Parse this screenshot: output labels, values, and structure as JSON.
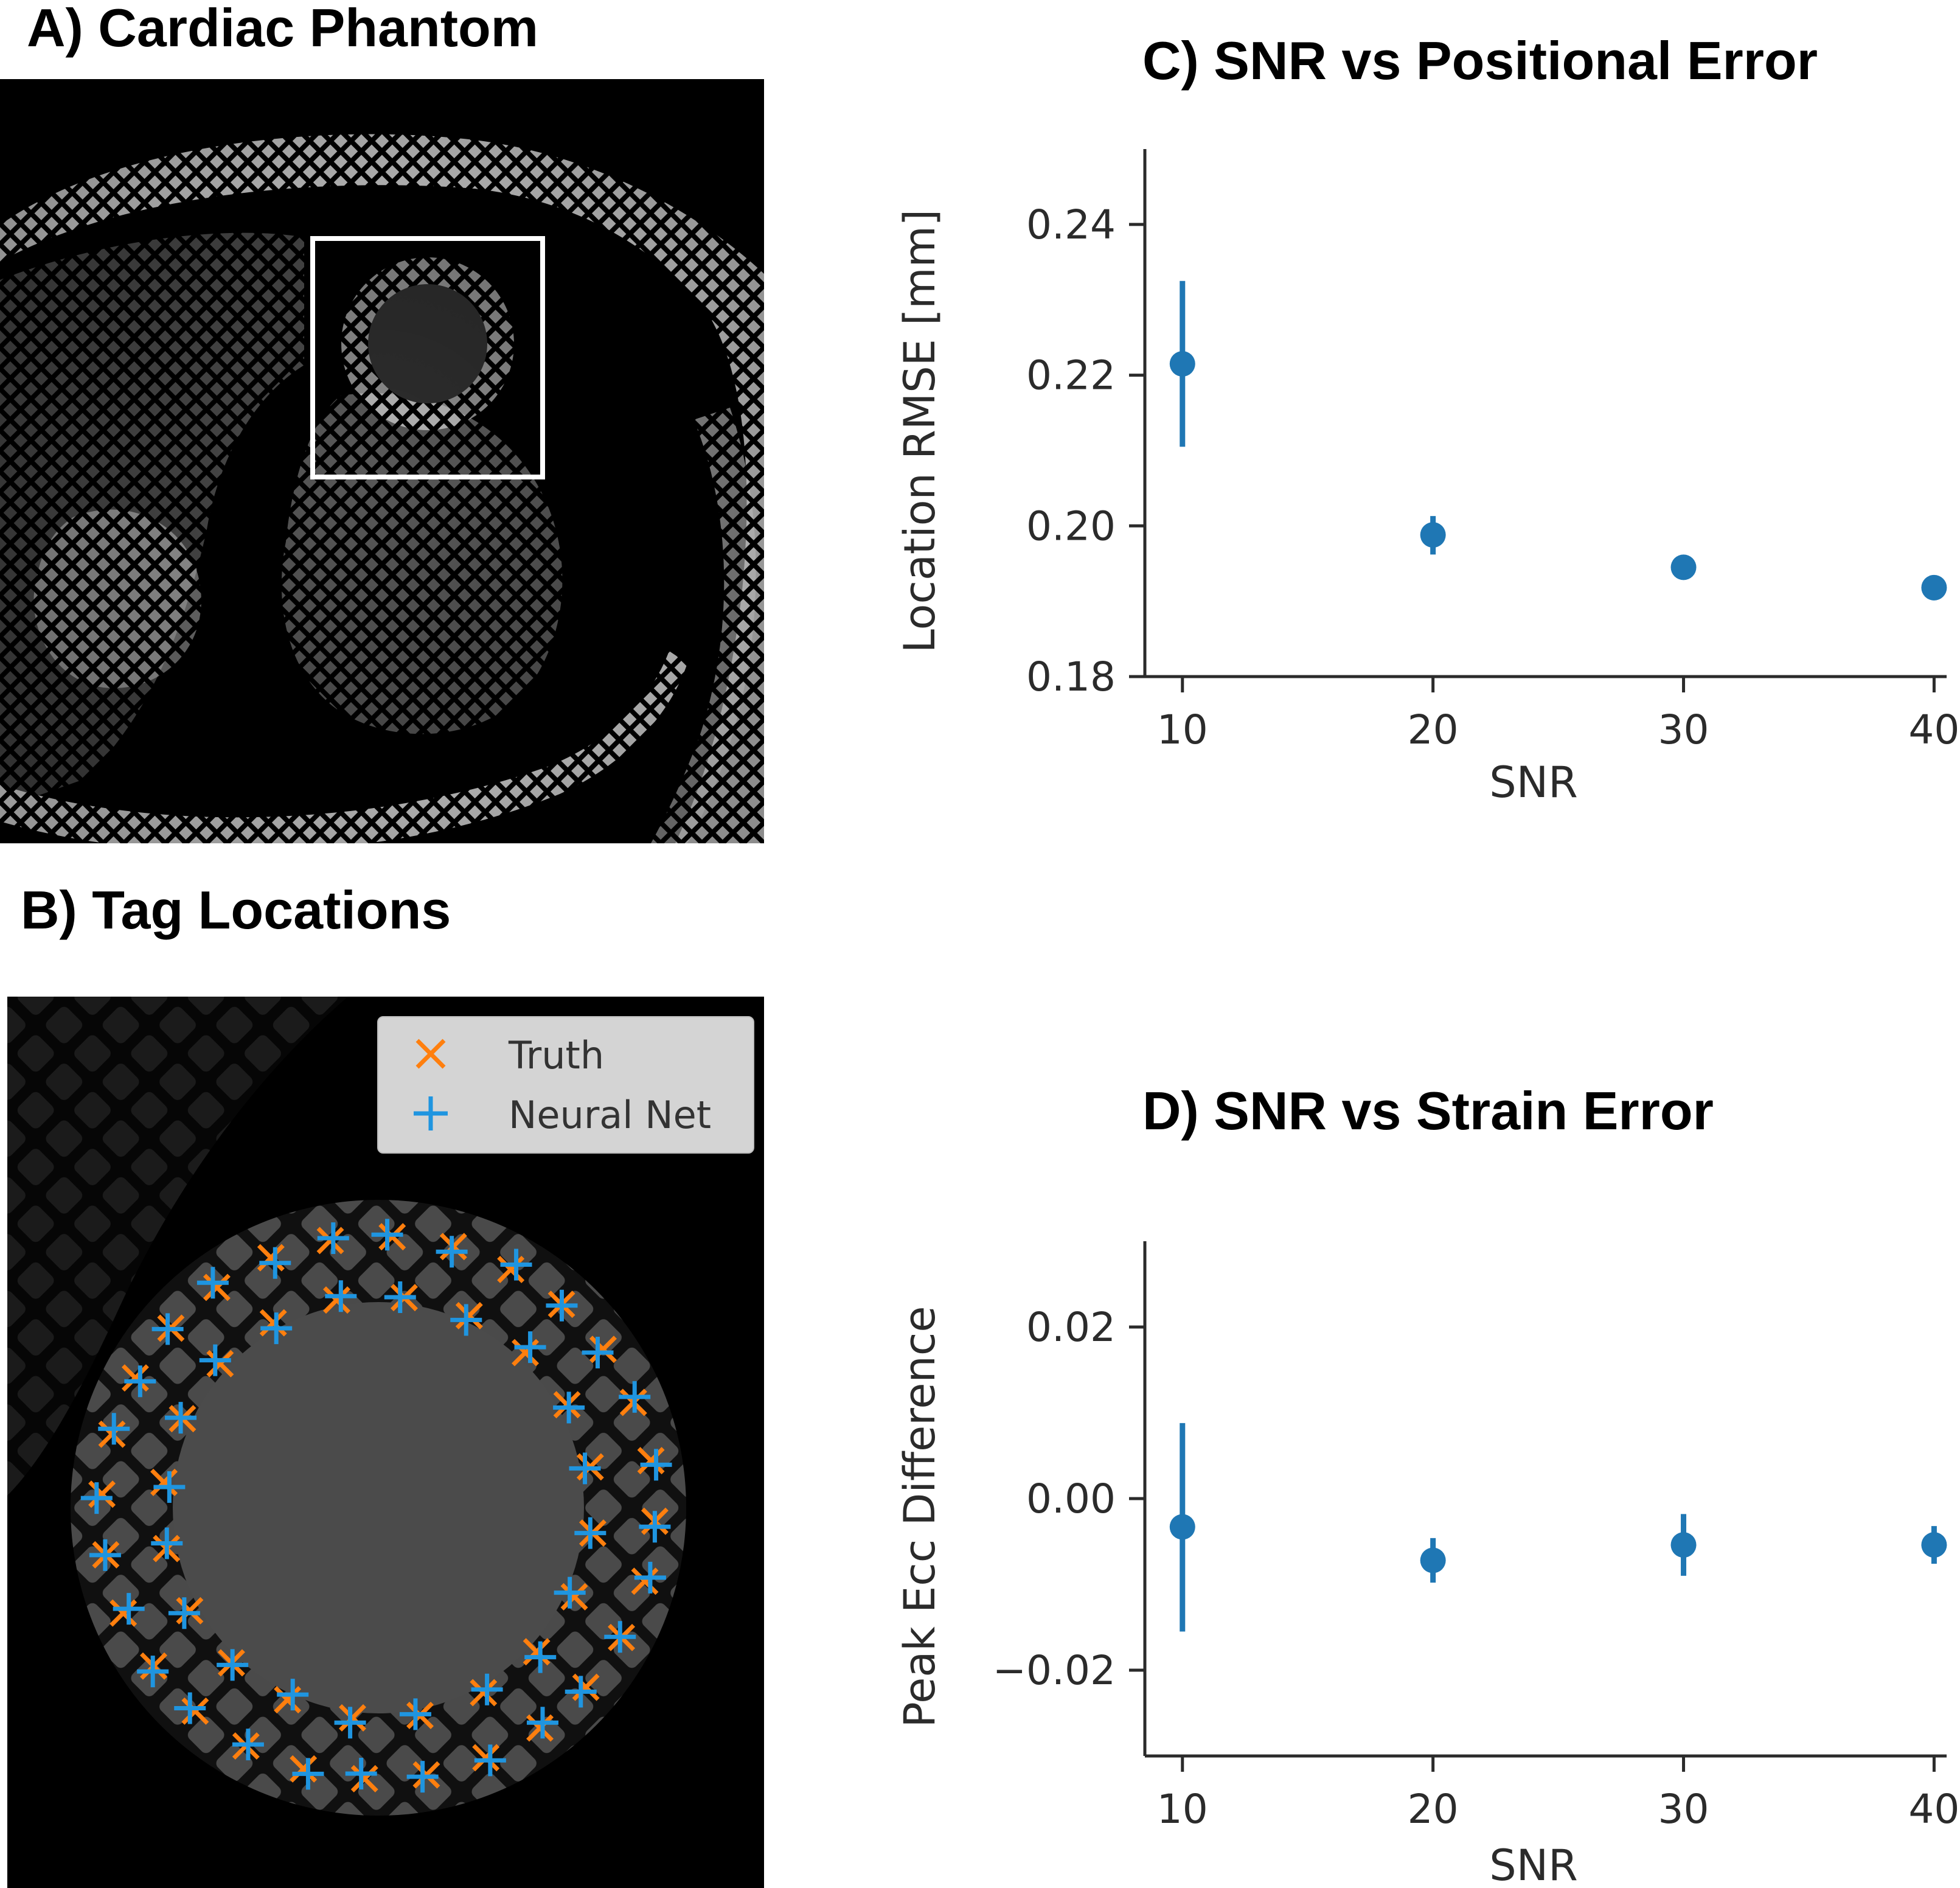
{
  "panels": {
    "a_title": "A) Cardiac Phantom",
    "b_title": "B) Tag Locations",
    "c_title": "C) SNR vs Positional Error",
    "d_title": "D) SNR vs Strain Error"
  },
  "legend": {
    "truth": "Truth",
    "neural_net": "Neural Net"
  },
  "colors": {
    "series": "#1f77b4",
    "truth": "#ff7f0e",
    "neural_net": "#1f95e0",
    "axis": "#2b2b2b"
  },
  "chart_data": [
    {
      "type": "scatter",
      "title": "C) SNR vs Positional Error",
      "xlabel": "SNR",
      "ylabel": "Location RMSE [mm]",
      "xlim": [
        8.5,
        40.5
      ],
      "ylim": [
        0.18,
        0.25
      ],
      "xticks": [
        10,
        20,
        30,
        40
      ],
      "xtick_labels": [
        "10",
        "20",
        "30",
        "40"
      ],
      "yticks": [
        0.18,
        0.2,
        0.22,
        0.24
      ],
      "ytick_labels": [
        "0.18",
        "0.20",
        "0.22",
        "0.24"
      ],
      "x": [
        10,
        20,
        30,
        40
      ],
      "y": [
        0.2215,
        0.1988,
        0.1945,
        0.1918
      ],
      "err_low": [
        0.2105,
        0.1962,
        0.194,
        0.1913
      ],
      "err_high": [
        0.2325,
        0.2013,
        0.195,
        0.1923
      ],
      "grid": false
    },
    {
      "type": "scatter",
      "title": "D) SNR vs Strain Error",
      "xlabel": "SNR",
      "ylabel": "Peak Ecc Difference",
      "xlim": [
        8.5,
        40.5
      ],
      "ylim": [
        -0.03,
        0.03
      ],
      "xticks": [
        10,
        20,
        30,
        40
      ],
      "xtick_labels": [
        "10",
        "20",
        "30",
        "40"
      ],
      "yticks": [
        -0.02,
        0.0,
        0.02
      ],
      "ytick_labels": [
        "−0.02",
        "0.00",
        "0.02"
      ],
      "x": [
        10,
        20,
        30,
        40
      ],
      "y": [
        -0.0033,
        -0.0072,
        -0.0054,
        -0.0054
      ],
      "err_low": [
        -0.0155,
        -0.0098,
        -0.009,
        -0.0076
      ],
      "err_high": [
        0.0088,
        -0.0046,
        -0.0018,
        -0.0032
      ],
      "grid": false
    }
  ]
}
